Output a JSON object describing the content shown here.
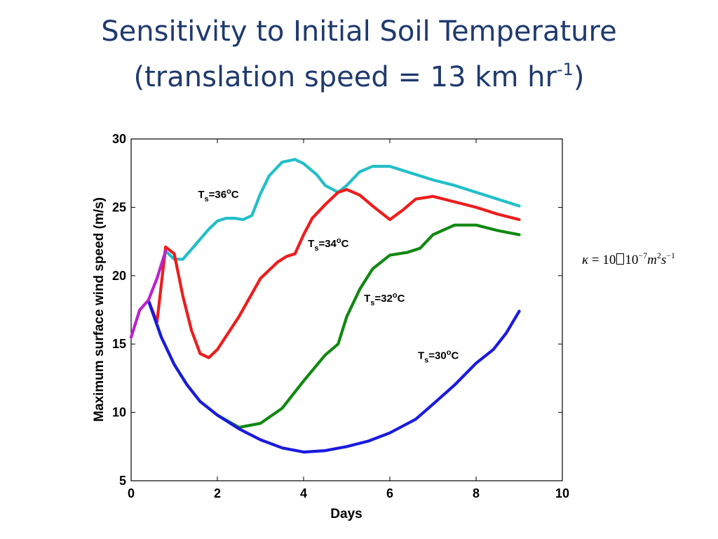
{
  "slide": {
    "title_line1": "Sensitivity to Initial Soil Temperature",
    "title_line2_pre": "(translation speed = 13 km hr",
    "title_line2_sup": "-1",
    "title_line2_post": ")"
  },
  "formula": {
    "kappa": "κ",
    "eq": " = 10",
    "ten": "10",
    "exp": "−7",
    "m": "m",
    "m_exp": "2",
    "s": "s",
    "s_exp": "−1"
  },
  "chart_data": {
    "type": "line",
    "title": "",
    "xlabel": "Days",
    "ylabel": "Maximum surface wind speed (m/s)",
    "xlim": [
      0,
      10
    ],
    "ylim": [
      5,
      30
    ],
    "xticks": [
      0,
      2,
      4,
      6,
      8,
      10
    ],
    "yticks": [
      5,
      10,
      15,
      20,
      25,
      30
    ],
    "grid": false,
    "colors": {
      "cyan": "#22bfc8",
      "red": "#ee1c1c",
      "green": "#118811",
      "blue": "#1a1adf",
      "magenta": "#bb22cc"
    },
    "series": [
      {
        "key": "common",
        "color_key": "magenta",
        "x": [
          0,
          0.2,
          0.4,
          0.6,
          0.8
        ],
        "y": [
          15.5,
          17.5,
          18.2,
          19.8,
          21.8
        ]
      },
      {
        "key": "ts30",
        "color_key": "blue",
        "x": [
          0.4,
          0.7,
          1.0,
          1.3,
          1.6,
          2.0,
          2.5,
          3.0,
          3.5,
          4.0,
          4.5,
          5.0,
          5.5,
          6.0,
          6.6,
          7.0,
          7.5,
          8.0,
          8.4,
          8.7,
          9.0
        ],
        "y": [
          18.2,
          15.5,
          13.5,
          12.0,
          10.8,
          9.8,
          8.8,
          8.0,
          7.4,
          7.1,
          7.2,
          7.5,
          7.9,
          8.5,
          9.5,
          10.6,
          12.0,
          13.6,
          14.6,
          15.8,
          17.4
        ]
      },
      {
        "key": "ts32",
        "color_key": "green",
        "x": [
          0.4,
          0.7,
          1.0,
          1.3,
          1.6,
          2.0,
          2.5,
          3.0,
          3.5,
          4.0,
          4.5,
          4.8,
          5.0,
          5.3,
          5.6,
          6.0,
          6.4,
          6.7,
          7.0,
          7.5,
          8.0,
          8.5,
          9.0
        ],
        "y": [
          18.2,
          15.5,
          13.5,
          12.0,
          10.8,
          9.8,
          8.9,
          9.2,
          10.3,
          12.3,
          14.2,
          15.0,
          17.0,
          19.0,
          20.5,
          21.5,
          21.7,
          22.0,
          23.0,
          23.7,
          23.7,
          23.3,
          23.0
        ]
      },
      {
        "key": "ts34",
        "color_key": "red",
        "x": [
          0.4,
          0.6,
          0.8,
          1.0,
          1.2,
          1.4,
          1.6,
          1.8,
          2.0,
          2.5,
          3.0,
          3.4,
          3.6,
          3.8,
          4.0,
          4.2,
          4.5,
          4.8,
          5.0,
          5.3,
          5.6,
          6.0,
          6.3,
          6.6,
          7.0,
          7.5,
          8.0,
          8.5,
          9.0
        ],
        "y": [
          18.2,
          16.6,
          22.1,
          21.6,
          18.5,
          16.0,
          14.3,
          14.0,
          14.6,
          17.0,
          19.8,
          21.0,
          21.4,
          21.6,
          23.0,
          24.2,
          25.2,
          26.1,
          26.3,
          25.9,
          25.1,
          24.1,
          24.8,
          25.6,
          25.8,
          25.4,
          25.0,
          24.5,
          24.1
        ]
      },
      {
        "key": "ts36",
        "color_key": "cyan",
        "x": [
          0.8,
          1.0,
          1.2,
          1.5,
          1.8,
          2.0,
          2.2,
          2.4,
          2.6,
          2.8,
          3.0,
          3.2,
          3.5,
          3.8,
          4.0,
          4.3,
          4.5,
          4.8,
          5.0,
          5.3,
          5.6,
          6.0,
          6.5,
          7.0,
          7.5,
          8.0,
          8.5,
          9.0
        ],
        "y": [
          21.8,
          21.2,
          21.2,
          22.3,
          23.4,
          24.0,
          24.2,
          24.2,
          24.1,
          24.4,
          26.0,
          27.3,
          28.3,
          28.5,
          28.2,
          27.4,
          26.6,
          26.1,
          26.6,
          27.6,
          28.0,
          28.0,
          27.5,
          27.0,
          26.6,
          26.1,
          25.6,
          25.1
        ]
      }
    ],
    "annotations": [
      {
        "text_main": "T",
        "text_sub": "s",
        "text_rest": "=36",
        "text_sup": "o",
        "text_end": "C",
        "x": 1.55,
        "y": 25.7
      },
      {
        "text_main": "T",
        "text_sub": "s",
        "text_rest": "=34",
        "text_sup": "o",
        "text_end": "C",
        "x": 4.1,
        "y": 22.1
      },
      {
        "text_main": "T",
        "text_sub": "s",
        "text_rest": "=32",
        "text_sup": "o",
        "text_end": "C",
        "x": 5.4,
        "y": 18.1
      },
      {
        "text_main": "T",
        "text_sub": "s",
        "text_rest": "=30",
        "text_sup": "o",
        "text_end": "C",
        "x": 6.65,
        "y": 13.9
      }
    ]
  }
}
